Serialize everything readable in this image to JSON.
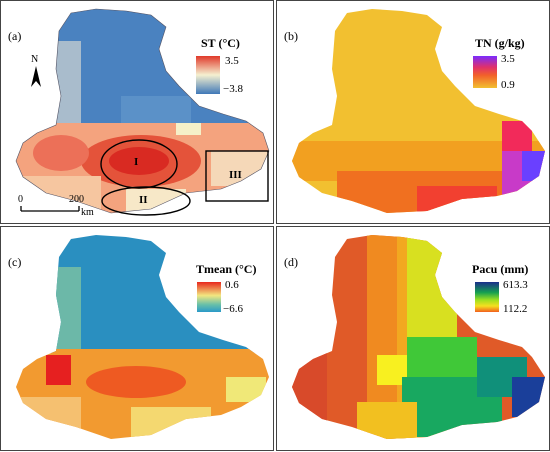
{
  "panels": [
    {
      "label": "(a)",
      "legend_title": "ST (°C)",
      "legend_max": "3.5",
      "legend_min": "−3.8",
      "legend_colors": [
        "#e0392a",
        "#f2b07a",
        "#f5f0d0",
        "#8fb3cf",
        "#3f78b8"
      ]
    },
    {
      "label": "(b)",
      "legend_title": "TN (g/kg)",
      "legend_max": "3.5",
      "legend_min": "0.9",
      "legend_colors": [
        "#7a2cff",
        "#d43bb8",
        "#f22a3a",
        "#f59a20",
        "#f2c030"
      ]
    },
    {
      "label": "(c)",
      "legend_title": "Tmean (°C)",
      "legend_max": "0.6",
      "legend_min": "−6.6",
      "legend_colors": [
        "#e8281e",
        "#f5a030",
        "#f2e680",
        "#69c0a8",
        "#2a9ac8"
      ]
    },
    {
      "label": "(d)",
      "legend_title": "Pacu (mm)",
      "legend_max": "613.3",
      "legend_min": "112.2",
      "legend_colors": [
        "#1b2f8c",
        "#15a050",
        "#6ee020",
        "#f5e020",
        "#f2601e"
      ]
    }
  ],
  "map_a": {
    "north_label": "N",
    "scale_start": "0",
    "scale_mid": "200",
    "scale_unit": "km",
    "region_labels": [
      "I",
      "II",
      "III"
    ]
  }
}
